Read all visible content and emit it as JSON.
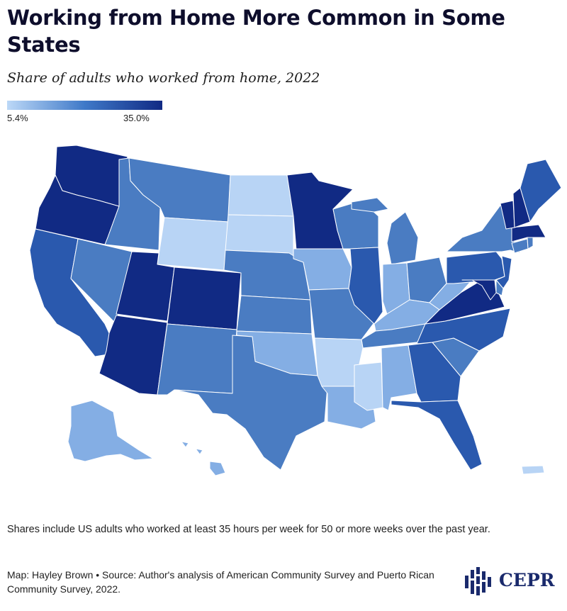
{
  "title": "Working from Home More Common in Some States",
  "subtitle": "Share of adults who worked from home, 2022",
  "legend": {
    "min_label": "5.4%",
    "max_label": "35.0%",
    "colors": [
      "#bcd8f7",
      "#3f79c8",
      "#112a84"
    ]
  },
  "map": {
    "shading": {
      "darkest": [
        "WA",
        "OR",
        "UT",
        "CO",
        "AZ",
        "MN",
        "VT",
        "NH",
        "MA",
        "MD",
        "VA",
        "DC"
      ],
      "dark": [
        "CA",
        "IL",
        "GA",
        "NC",
        "FL",
        "NJ",
        "PA",
        "ME"
      ],
      "medium": [
        "MT",
        "ID",
        "NV",
        "NM",
        "TX",
        "KS",
        "NE",
        "WI",
        "MI",
        "MO",
        "OH",
        "NY",
        "TN",
        "CT",
        "RI",
        "DE",
        "SC"
      ],
      "light": [
        "IA",
        "IN",
        "KY",
        "WV",
        "AL",
        "LA",
        "OK",
        "HI",
        "AK"
      ],
      "lightest": [
        "WY",
        "ND",
        "SD",
        "AR",
        "MS",
        "PR"
      ]
    }
  },
  "note": "Shares include US adults who worked at least 35 hours per week for 50 or more weeks over the past year.",
  "credit": "Map: Hayley Brown • Source: Author's analysis of American Community Survey and Puerto Rican Community Survey, 2022.",
  "logo": {
    "text": "CEPR"
  }
}
